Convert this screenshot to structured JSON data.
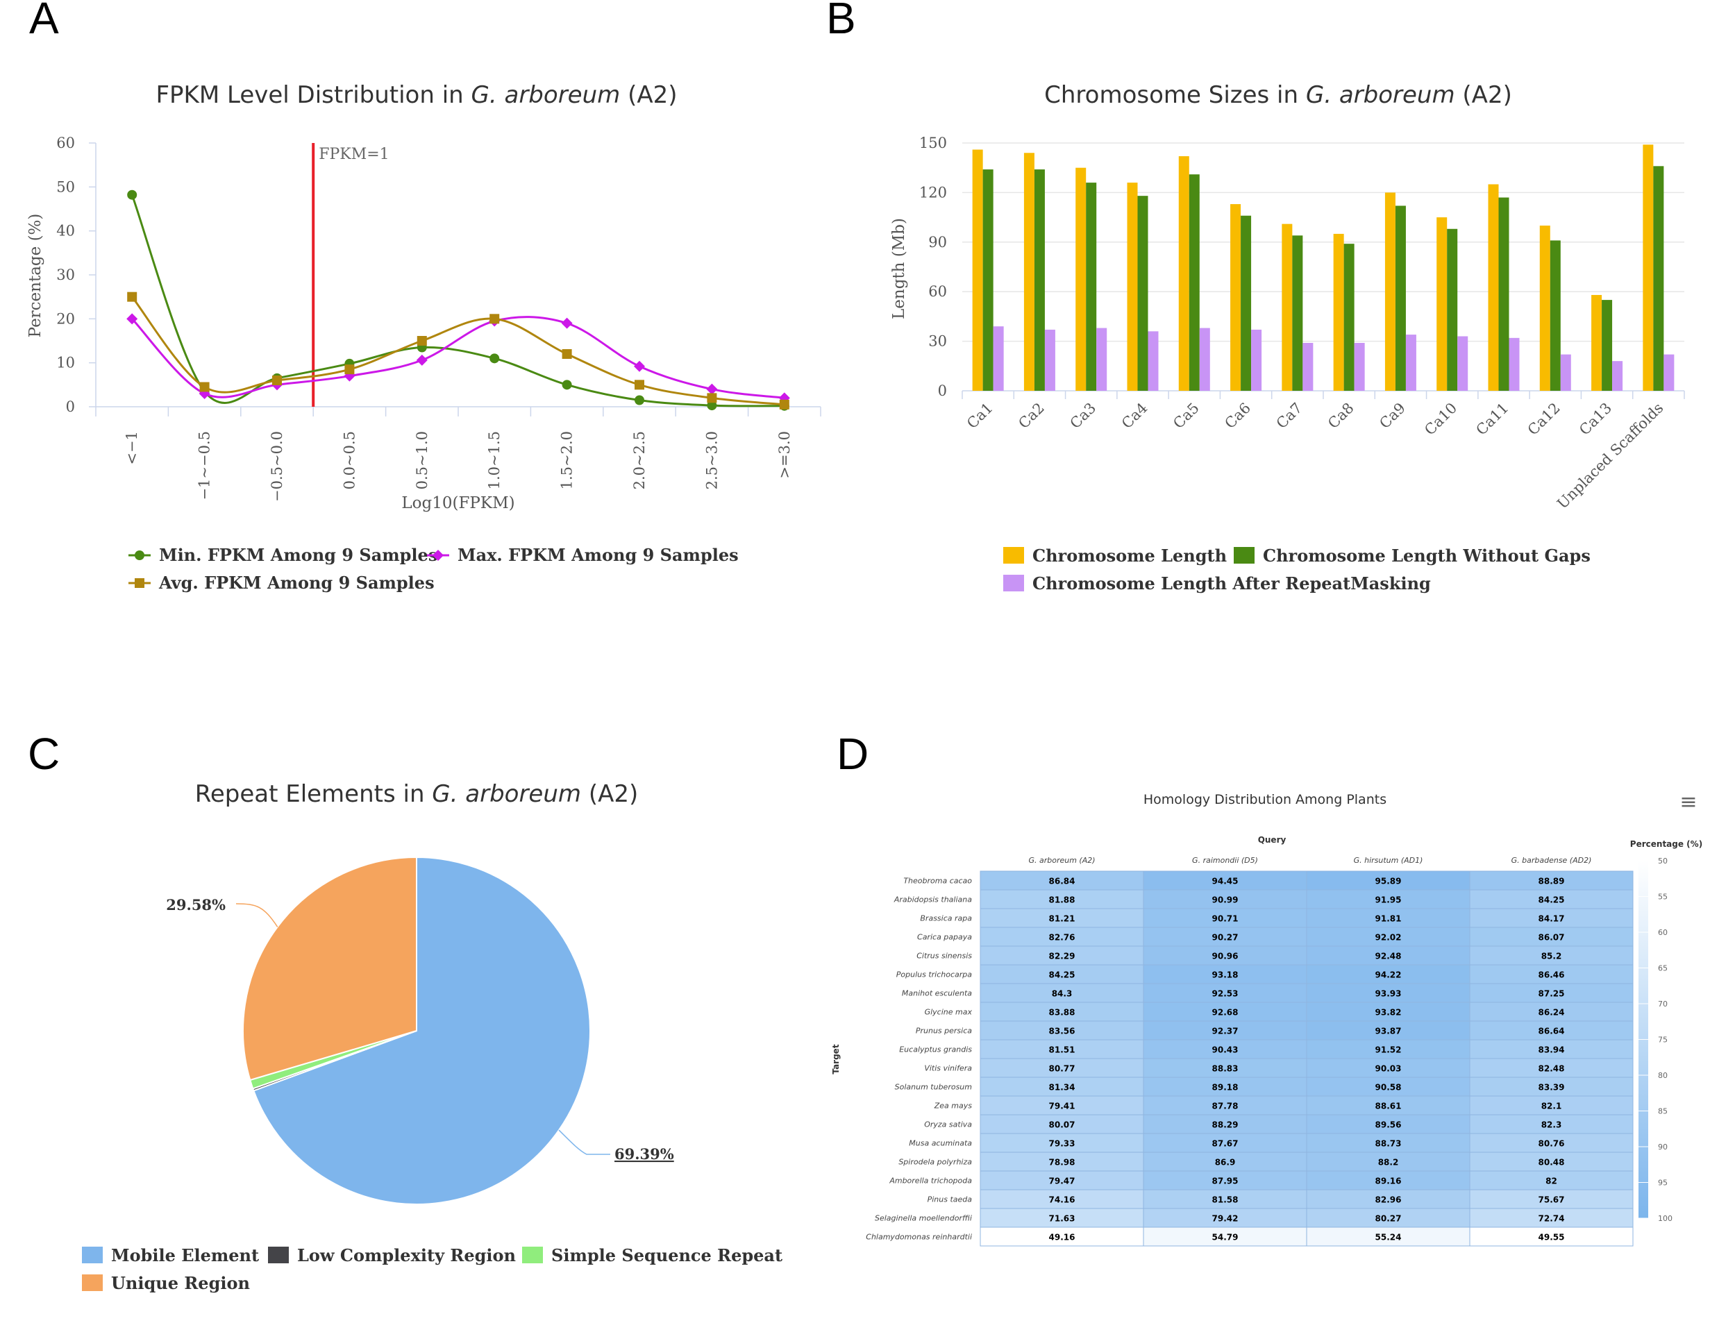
{
  "panels": {
    "a": "A",
    "b": "B",
    "c": "C",
    "d": "D"
  },
  "chart_data": [
    {
      "type": "line",
      "panel": "A",
      "title_parts": [
        "FPKM Level Distribution in ",
        "G. arboreum",
        " (A2)"
      ],
      "xlabel": "Log10(FPKM)",
      "ylabel": "Percentage (%)",
      "categories": [
        "<−1",
        "−1~−0.5",
        "−0.5~0.0",
        "0.0~0.5",
        "0.5~1.0",
        "1.0~1.5",
        "1.5~2.0",
        "2.0~2.5",
        "2.5~3.0",
        ">=3.0"
      ],
      "ylim": [
        0,
        60
      ],
      "yticks": [
        0,
        10,
        20,
        30,
        40,
        50,
        60
      ],
      "annotation": {
        "label": "FPKM=1",
        "x_between": [
          "−0.5~0.0",
          "0.0~0.5"
        ],
        "color": "#e8202a"
      },
      "series": [
        {
          "name": "Min. FPKM Among 9 Samples",
          "color": "#4a8a13",
          "marker": "circle",
          "values": [
            48.2,
            3.5,
            6.5,
            9.8,
            13.5,
            11.0,
            5.0,
            1.5,
            0.3,
            0.2
          ]
        },
        {
          "name": "Max. FPKM Among 9 Samples",
          "color": "#cc18e8",
          "marker": "diamond",
          "values": [
            20.0,
            3.0,
            5.0,
            7.0,
            10.6,
            19.5,
            19.0,
            9.2,
            4.0,
            2.0
          ]
        },
        {
          "name": "Avg. FPKM Among 9 Samples",
          "color": "#b0860e",
          "marker": "square",
          "values": [
            25.0,
            4.5,
            6.0,
            8.5,
            15.0,
            20.0,
            12.0,
            5.0,
            2.0,
            0.5
          ]
        }
      ],
      "legend": "bottom"
    },
    {
      "type": "bar",
      "panel": "B",
      "title_parts": [
        "Chromosome Sizes in ",
        "G. arboreum",
        " (A2)"
      ],
      "ylabel": "Length (Mb)",
      "categories": [
        "Ca1",
        "Ca2",
        "Ca3",
        "Ca4",
        "Ca5",
        "Ca6",
        "Ca7",
        "Ca8",
        "Ca9",
        "Ca10",
        "Ca11",
        "Ca12",
        "Ca13",
        "Unplaced Scaffolds"
      ],
      "ylim": [
        0,
        150
      ],
      "yticks": [
        0,
        30,
        60,
        90,
        120,
        150
      ],
      "series": [
        {
          "name": "Chromosome Length",
          "color": "#f8bb00",
          "values": [
            146,
            144,
            135,
            126,
            142,
            113,
            101,
            95,
            120,
            105,
            125,
            100,
            58,
            149
          ]
        },
        {
          "name": "Chromosome Length Without Gaps",
          "color": "#4a8a13",
          "values": [
            134,
            134,
            126,
            118,
            131,
            106,
            94,
            89,
            112,
            98,
            117,
            91,
            55,
            136
          ]
        },
        {
          "name": "Chromosome Length After RepeatMasking",
          "color": "#c894f5",
          "values": [
            39,
            37,
            38,
            36,
            38,
            37,
            29,
            29,
            34,
            33,
            32,
            22,
            18,
            22
          ]
        }
      ],
      "legend": "bottom"
    },
    {
      "type": "pie",
      "panel": "C",
      "title_parts": [
        "Repeat Elements in ",
        "G. arboreum",
        " (A2)"
      ],
      "slices": [
        {
          "name": "Mobile Element",
          "value": 69.39,
          "label": "69.39%",
          "color": "#7eb5ec"
        },
        {
          "name": "Low Complexity Region",
          "value": 0.2,
          "label": "",
          "color": "#444448"
        },
        {
          "name": "Simple Sequence Repeat",
          "value": 0.83,
          "label": "",
          "color": "#90ed7d"
        },
        {
          "name": "Unique Region",
          "value": 29.58,
          "label": "29.58%",
          "color": "#f5a45d"
        }
      ],
      "legend": "bottom"
    },
    {
      "type": "heatmap",
      "panel": "D",
      "title": "Homology Distribution Among Plants",
      "xaxis_title": "Query",
      "yaxis_title": "Target",
      "columns": [
        "G. arboreum (A2)",
        "G. raimondii (D5)",
        "G. hirsutum (AD1)",
        "G. barbadense (AD2)"
      ],
      "rows": [
        "Theobroma cacao",
        "Arabidopsis thaliana",
        "Brassica rapa",
        "Carica papaya",
        "Citrus sinensis",
        "Populus trichocarpa",
        "Manihot esculenta",
        "Glycine max",
        "Prunus persica",
        "Eucalyptus grandis",
        "Vitis vinifera",
        "Solanum tuberosum",
        "Zea mays",
        "Oryza sativa",
        "Musa acuminata",
        "Spirodela polyrhiza",
        "Amborella trichopoda",
        "Pinus taeda",
        "Selaginella moellendorffii",
        "Chlamydomonas reinhardtii"
      ],
      "values": [
        [
          "86.84",
          "94.45",
          "95.89",
          "88.89"
        ],
        [
          "81.88",
          "90.99",
          "91.95",
          "84.25"
        ],
        [
          "81.21",
          "90.71",
          "91.81",
          "84.17"
        ],
        [
          "82.76",
          "90.27",
          "92.02",
          "86.07"
        ],
        [
          "82.29",
          "90.96",
          "92.48",
          "85.2"
        ],
        [
          "84.25",
          "93.18",
          "94.22",
          "86.46"
        ],
        [
          "84.3",
          "92.53",
          "93.93",
          "87.25"
        ],
        [
          "83.88",
          "92.68",
          "93.82",
          "86.24"
        ],
        [
          "83.56",
          "92.37",
          "93.87",
          "86.64"
        ],
        [
          "81.51",
          "90.43",
          "91.52",
          "83.94"
        ],
        [
          "80.77",
          "88.83",
          "90.03",
          "82.48"
        ],
        [
          "81.34",
          "89.18",
          "90.58",
          "83.39"
        ],
        [
          "79.41",
          "87.78",
          "88.61",
          "82.1"
        ],
        [
          "80.07",
          "88.29",
          "89.56",
          "82.3"
        ],
        [
          "79.33",
          "87.67",
          "88.73",
          "80.76"
        ],
        [
          "78.98",
          "86.9",
          "88.2",
          "80.48"
        ],
        [
          "79.47",
          "87.95",
          "89.16",
          "82"
        ],
        [
          "74.16",
          "81.58",
          "82.96",
          "75.67"
        ],
        [
          "71.63",
          "79.42",
          "80.27",
          "72.74"
        ],
        [
          "49.16",
          "54.79",
          "55.24",
          "49.55"
        ]
      ],
      "colorscale": {
        "title": "Percentage (%)",
        "min": 50,
        "max": 100,
        "ticks": [
          50,
          55,
          60,
          65,
          70,
          75,
          80,
          85,
          90,
          95,
          100
        ],
        "low_color": "#ffffff",
        "high_color": "#7cb5ec"
      },
      "menu_icon": "hamburger-menu-icon"
    }
  ]
}
